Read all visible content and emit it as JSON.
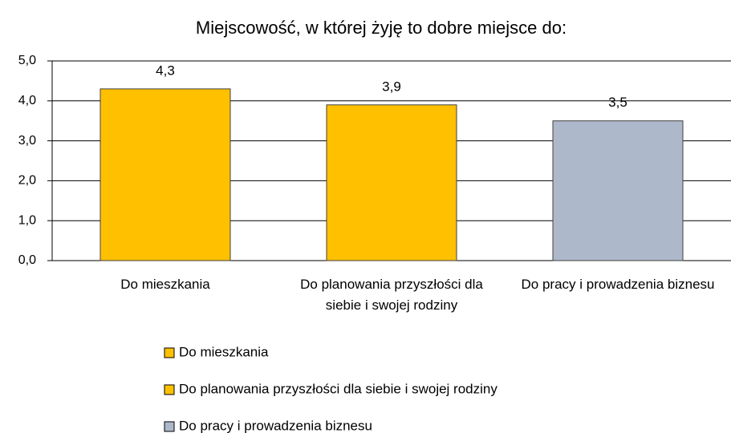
{
  "chart_data": {
    "type": "bar",
    "title": "Miejscowość, w której żyję to dobre miejsce do:",
    "categories": [
      "Do mieszkania",
      "Do planowania przyszłości dla siebie i swojej rodziny",
      "Do pracy i prowadzenia biznesu"
    ],
    "values": [
      4.3,
      3.9,
      3.5
    ],
    "value_labels": [
      "4,3",
      "3,9",
      "3,5"
    ],
    "colors": [
      "#ffc000",
      "#ffc000",
      "#adb9ca"
    ],
    "ylim": [
      0,
      5
    ],
    "yticks": [
      {
        "value": 0,
        "label": "0,0"
      },
      {
        "value": 1,
        "label": "1,0"
      },
      {
        "value": 2,
        "label": "2,0"
      },
      {
        "value": 3,
        "label": "3,0"
      },
      {
        "value": 4,
        "label": "4,0"
      },
      {
        "value": 5,
        "label": "5,0"
      }
    ],
    "grid": true,
    "legend": "bottom"
  }
}
